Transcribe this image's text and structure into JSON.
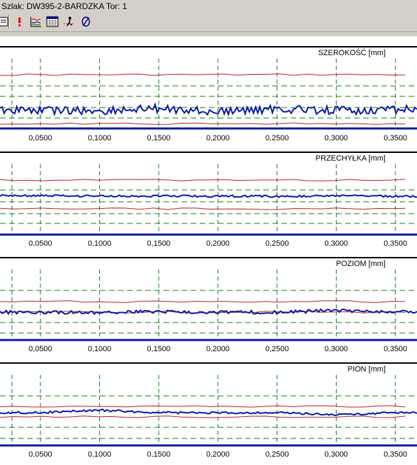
{
  "window": {
    "title": "Szlak: DW395-2-BARDZKA Tor: 1"
  },
  "toolbar": {
    "buttons": [
      {
        "name": "report-icon"
      },
      {
        "name": "exclamation-icon"
      },
      {
        "name": "chart-icon"
      },
      {
        "name": "grid-table-icon"
      },
      {
        "name": "person-track-icon"
      },
      {
        "name": "null-circle-icon"
      }
    ]
  },
  "colors": {
    "signal": "#0a1a9c",
    "limit": "#b22222",
    "grid_green": "#1a7a1a",
    "baseline": "#0a1a9c"
  },
  "chart_data": [
    {
      "type": "line",
      "title": "SZEROKOŚĆ [mm]",
      "x": [
        0.05,
        0.1,
        0.15,
        0.2,
        0.25,
        0.3,
        0.35
      ],
      "tick_labels": [
        "0,0500",
        "0,1000",
        "0,1500",
        "0,2000",
        "0,2500",
        "0,3000",
        "0,3500"
      ],
      "xlim": [
        0.0259,
        0.3653
      ],
      "grid": true,
      "series": [
        {
          "values": [
            0.58,
            0.52,
            0.66,
            0.48,
            0.62,
            0.55,
            0.6
          ]
        }
      ]
    },
    {
      "type": "line",
      "title": "PRZECHYŁKA [mm]",
      "x": [
        0.05,
        0.1,
        0.15,
        0.2,
        0.25,
        0.3,
        0.35
      ],
      "tick_labels": [
        "0,0500",
        "0,1000",
        "0,1500",
        "0,2000",
        "0,2500",
        "0,3000",
        "0,3500"
      ],
      "xlim": [
        0.0259,
        0.3653
      ],
      "grid": true,
      "series": [
        {
          "values": [
            0.52,
            0.5,
            0.51,
            0.5,
            0.49,
            0.51,
            0.5
          ]
        }
      ]
    },
    {
      "type": "line",
      "title": "POZIOM [mm]",
      "x": [
        0.05,
        0.1,
        0.15,
        0.2,
        0.25,
        0.3,
        0.35
      ],
      "tick_labels": [
        "0,0500",
        "0,1000",
        "0,1500",
        "0,2000",
        "0,2500",
        "0,3000",
        "0,3500"
      ],
      "xlim": [
        0.0259,
        0.3653
      ],
      "grid": true,
      "series": [
        {
          "values": [
            0.5,
            0.48,
            0.52,
            0.5,
            0.49,
            0.58,
            0.5
          ]
        }
      ]
    },
    {
      "type": "line",
      "title": "PION [mm]",
      "x": [
        0.05,
        0.1,
        0.15,
        0.2,
        0.25,
        0.3,
        0.35
      ],
      "tick_labels": [
        "0,0500",
        "0,1000",
        "0,1500",
        "0,2000",
        "0,2500",
        "0,3000",
        "0,3500"
      ],
      "xlim": [
        0.0259,
        0.3653
      ],
      "grid": true,
      "series": [
        {
          "values": [
            0.5,
            0.62,
            0.5,
            0.49,
            0.5,
            0.4,
            0.5
          ]
        }
      ]
    }
  ]
}
